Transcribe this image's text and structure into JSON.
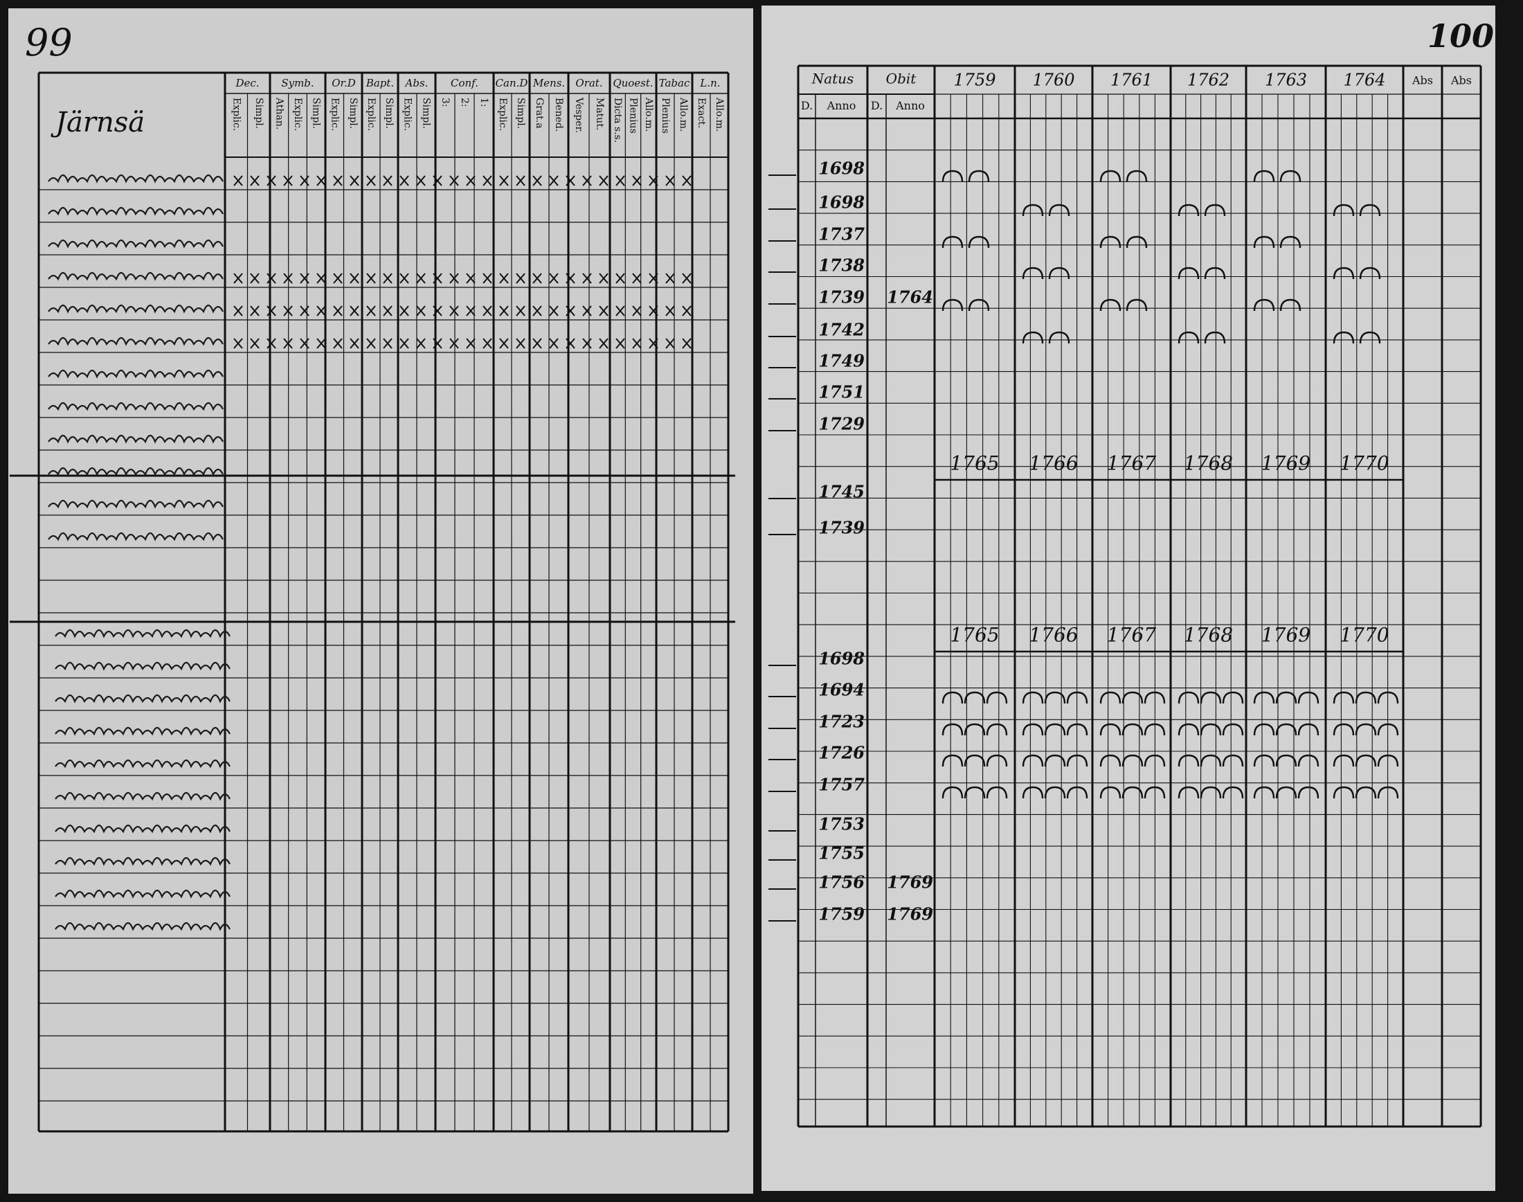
{
  "left_page": {
    "page_number": "99",
    "heading": "Järnsä",
    "columns": [
      {
        "label": "Dec.",
        "sub": [
          "Explic.",
          "Simpl."
        ]
      },
      {
        "label": "Symb.",
        "sub": [
          "Athan.",
          "Explic.",
          "Simpl."
        ]
      },
      {
        "label": "Or.D",
        "sub": [
          "Explic.",
          "Simpl."
        ]
      },
      {
        "label": "Bapt.",
        "sub": [
          "Explic.",
          "Simpl."
        ]
      },
      {
        "label": "Abs.",
        "sub": [
          "Explic.",
          "Simpl."
        ]
      },
      {
        "label": "Conf.",
        "sub": [
          "3:",
          "2:",
          "1:"
        ]
      },
      {
        "label": "Can.D",
        "sub": [
          "Explic.",
          "Simpl."
        ]
      },
      {
        "label": "Mens.",
        "sub": [
          "Grat.a",
          "Bened."
        ]
      },
      {
        "label": "Orat.",
        "sub": [
          "Vesper.",
          "Matut."
        ]
      },
      {
        "label": "Quoest.",
        "sub": [
          "Dicta s.s.",
          "Plenius",
          "Allo.m."
        ]
      },
      {
        "label": "Tabac",
        "sub": [
          "Plenius",
          "Allo.m."
        ]
      },
      {
        "label": "L.n.",
        "sub": [
          "Exact.",
          "Allo.m."
        ]
      }
    ]
  },
  "right_page": {
    "page_number": "100",
    "natus": {
      "label": "Natus",
      "sub": [
        "D.",
        "Anno"
      ]
    },
    "obit": {
      "label": "Obit",
      "sub": [
        "D.",
        "Anno"
      ]
    },
    "years": [
      "1759",
      "1760",
      "1761",
      "1762",
      "1763",
      "1764"
    ],
    "extra_columns": [
      "Abs",
      "Abs"
    ],
    "groups": [
      {
        "entries": [
          {
            "natus_anno": "1698"
          },
          {
            "natus_anno": "1698"
          },
          {
            "natus_anno": "1737"
          },
          {
            "natus_anno": "1738"
          },
          {
            "natus_anno": "1739",
            "obit_anno": "1764"
          },
          {
            "natus_anno": "1742"
          },
          {
            "natus_anno": "1749"
          },
          {
            "natus_anno": "1751"
          },
          {
            "natus_anno": "1729"
          }
        ]
      },
      {
        "years": [
          "1765",
          "1766",
          "1767",
          "1768",
          "1769",
          "1770"
        ],
        "entries": [
          {
            "natus_anno": "1745"
          },
          {
            "natus_anno": "1739"
          }
        ]
      },
      {
        "years": [
          "1765",
          "1766",
          "1767",
          "1768",
          "1769",
          "1770"
        ],
        "entries": [
          {
            "natus_anno": "1698"
          },
          {
            "natus_anno": "1694"
          },
          {
            "natus_anno": "1723"
          },
          {
            "natus_anno": "1726"
          },
          {
            "natus_anno": "1757"
          },
          {
            "natus_anno": "1753"
          },
          {
            "natus_anno": "1755"
          },
          {
            "natus_anno": "1756",
            "obit_anno": "1769"
          },
          {
            "natus_anno": "1759",
            "obit_anno": "1769"
          }
        ]
      }
    ]
  }
}
